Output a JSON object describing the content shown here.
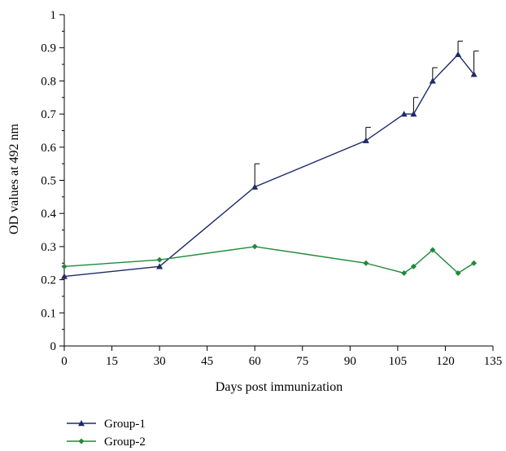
{
  "chart_data": {
    "type": "line",
    "xlabel": "Days post immunization",
    "ylabel": "OD values at 492 nm",
    "xlim": [
      0,
      135
    ],
    "ylim": [
      0,
      1
    ],
    "xticks": [
      "0",
      "15",
      "30",
      "45",
      "60",
      "75",
      "90",
      "105",
      "120",
      "135"
    ],
    "yticks": [
      "0",
      "0.1",
      "0.2",
      "0.3",
      "0.4",
      "0.5",
      "0.6",
      "0.7",
      "0.8",
      "0.9",
      "1"
    ],
    "grid": false,
    "legend_position": "bottom-left",
    "series": [
      {
        "name": "Group-1",
        "color": "#1f2a6b",
        "marker": "triangle",
        "x": [
          0,
          30,
          60,
          95,
          107,
          110,
          116,
          124,
          129
        ],
        "y": [
          0.21,
          0.24,
          0.48,
          0.62,
          0.7,
          0.7,
          0.8,
          0.88,
          0.82
        ],
        "error_upper": [
          0,
          0,
          0.07,
          0.04,
          0,
          0.05,
          0.04,
          0.04,
          0.07
        ]
      },
      {
        "name": "Group-2",
        "color": "#1e8a3c",
        "marker": "diamond",
        "x": [
          0,
          30,
          60,
          95,
          107,
          110,
          116,
          124,
          129
        ],
        "y": [
          0.24,
          0.26,
          0.3,
          0.25,
          0.22,
          0.24,
          0.29,
          0.22,
          0.25
        ]
      }
    ]
  }
}
